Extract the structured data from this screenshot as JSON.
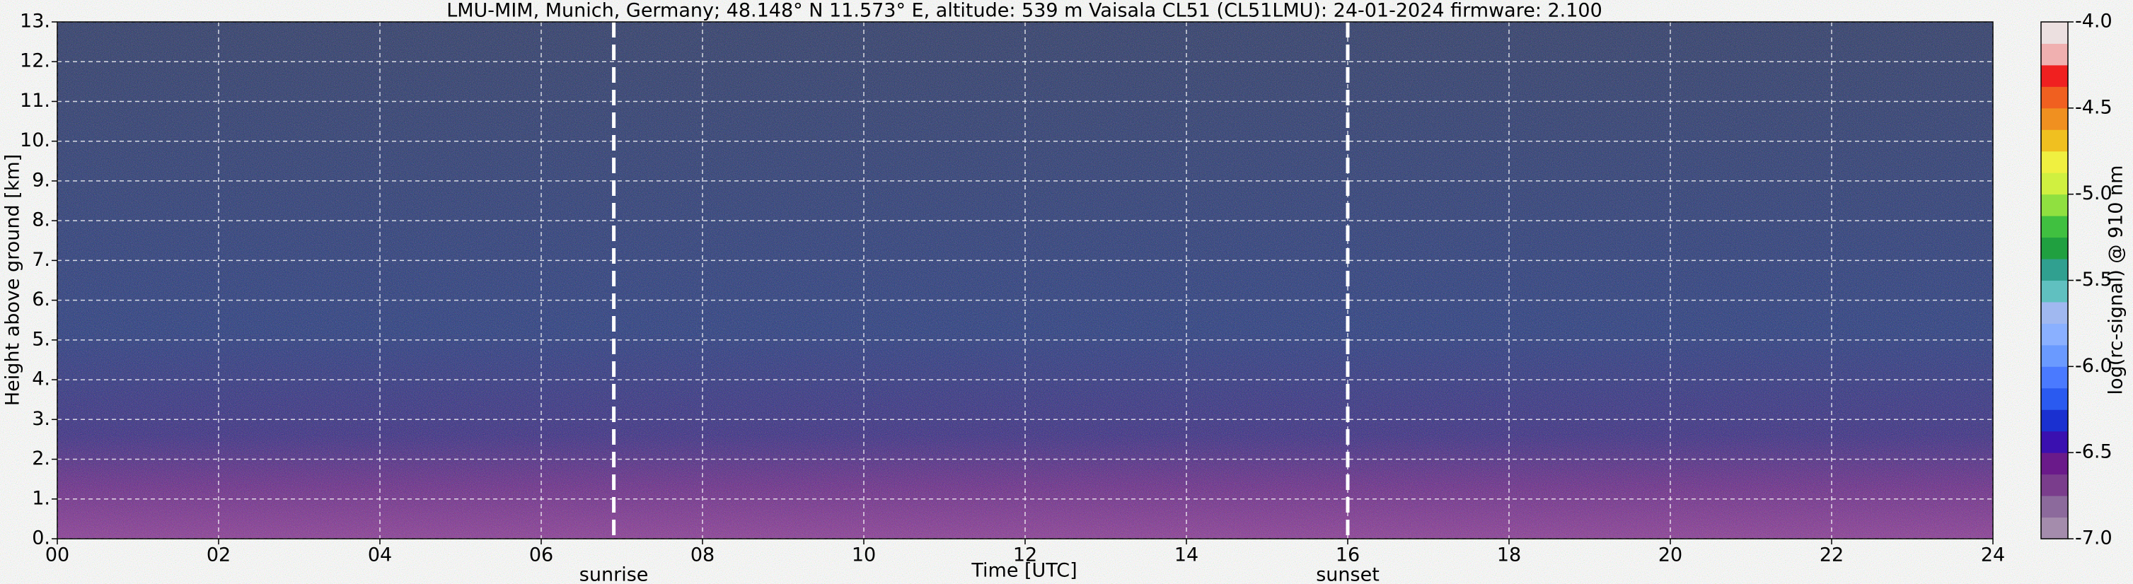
{
  "chart_data": {
    "type": "heatmap",
    "title": "LMU-MIM, Munich, Germany; 48.148° N 11.573° E, altitude: 539 m    Vaisala CL51 (CL51LMU): 24-01-2024    firmware: 2.100",
    "xlabel": "Time [UTC]",
    "ylabel": "Height above ground [km]",
    "xlim": [
      0,
      24
    ],
    "xticks": [
      {
        "value": 0,
        "label": "00"
      },
      {
        "value": 2,
        "label": "02"
      },
      {
        "value": 4,
        "label": "04"
      },
      {
        "value": 6,
        "label": "06"
      },
      {
        "value": 8,
        "label": "08"
      },
      {
        "value": 10,
        "label": "10"
      },
      {
        "value": 12,
        "label": "12"
      },
      {
        "value": 14,
        "label": "14"
      },
      {
        "value": 16,
        "label": "16"
      },
      {
        "value": 18,
        "label": "18"
      },
      {
        "value": 20,
        "label": "20"
      },
      {
        "value": 22,
        "label": "22"
      },
      {
        "value": 24,
        "label": "24"
      }
    ],
    "ylim": [
      0,
      13
    ],
    "yticks": [
      {
        "value": 0,
        "label": "0."
      },
      {
        "value": 1,
        "label": "1."
      },
      {
        "value": 2,
        "label": "2."
      },
      {
        "value": 3,
        "label": "3."
      },
      {
        "value": 4,
        "label": "4."
      },
      {
        "value": 5,
        "label": "5."
      },
      {
        "value": 6,
        "label": "6."
      },
      {
        "value": 7,
        "label": "7."
      },
      {
        "value": 8,
        "label": "8."
      },
      {
        "value": 9,
        "label": "9."
      },
      {
        "value": 10,
        "label": "10."
      },
      {
        "value": 11,
        "label": "11."
      },
      {
        "value": 12,
        "label": "12."
      },
      {
        "value": 13,
        "label": "13."
      }
    ],
    "grid": true,
    "annotations": [
      {
        "text": "sunrise",
        "x": 6.9
      },
      {
        "text": "sunset",
        "x": 16.0
      }
    ],
    "colorbar": {
      "label": "log(rc-signal) @ 910 nm",
      "lim": [
        -7,
        -4
      ],
      "ticks": [
        {
          "value": -7,
          "label": "-7.0"
        },
        {
          "value": -6.5,
          "label": "-6.5"
        },
        {
          "value": -6,
          "label": "-6.0"
        },
        {
          "value": -5.5,
          "label": "-5.5"
        },
        {
          "value": -5,
          "label": "-5.0"
        },
        {
          "value": -4.5,
          "label": "-4.5"
        },
        {
          "value": -4,
          "label": "-4.0"
        }
      ],
      "colors": [
        "#a48cac",
        "#8c6a9c",
        "#7a3d8c",
        "#6a1a8a",
        "#3a10b0",
        "#1a30d0",
        "#2a5af0",
        "#4a7aff",
        "#6a9aff",
        "#8ab0ff",
        "#a0b8f0",
        "#60c0c0",
        "#30a090",
        "#20a040",
        "#40c040",
        "#90e040",
        "#d0f040",
        "#f0f040",
        "#f0c020",
        "#f09020",
        "#f06020",
        "#f02020",
        "#f0b0b0",
        "#ece0e0"
      ]
    }
  }
}
